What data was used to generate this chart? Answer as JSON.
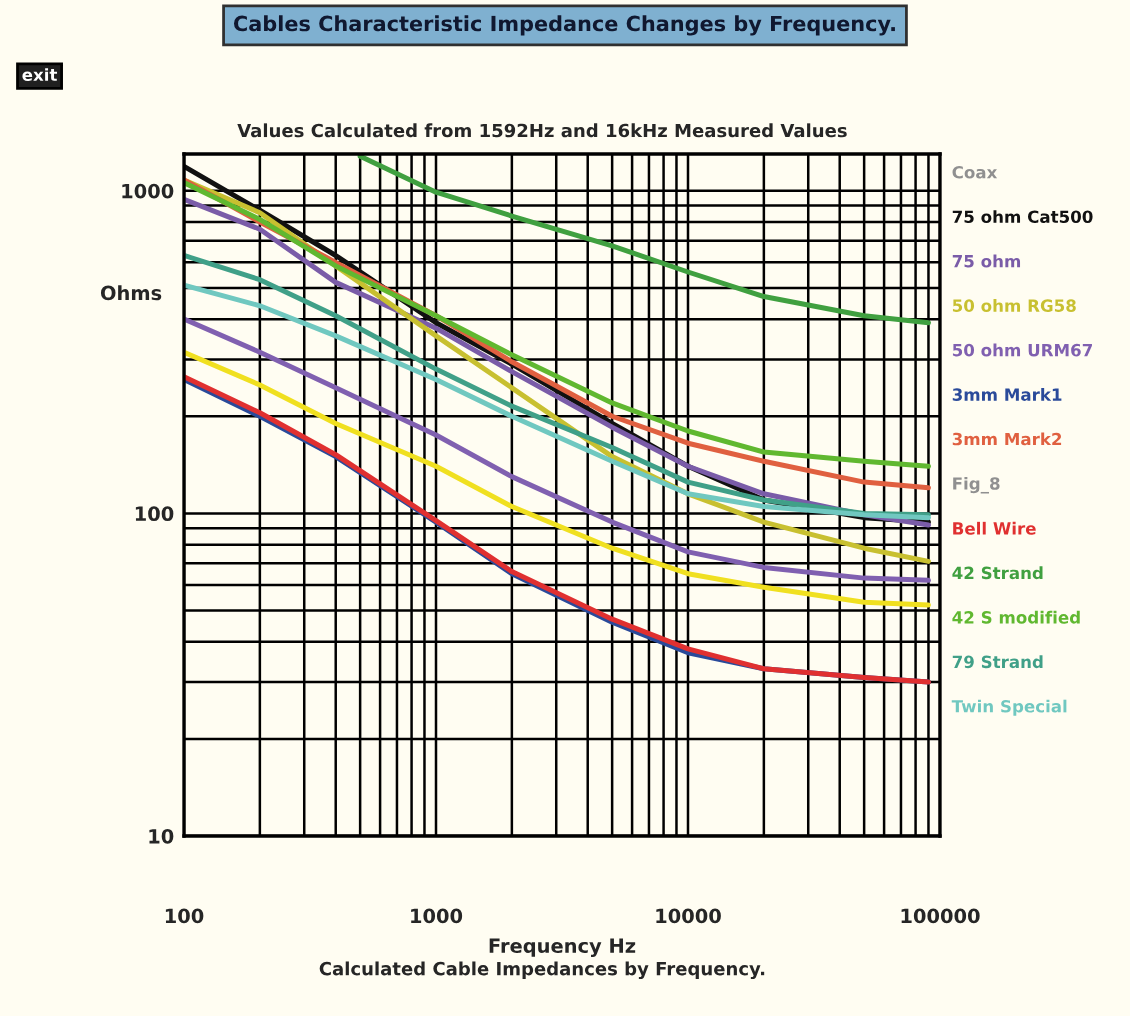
{
  "chart_data": {
    "type": "line",
    "title": "Cables Characteristic Impedance Changes by Frequency.",
    "subtitle": "Values Calculated from 1592Hz and 16kHz Measured Values",
    "xlabel": "Frequency Hz",
    "ylabel": "Ohms",
    "legend_title": "Coax",
    "annotations": [
      "Fig_8",
      "Calculated Cable Impedances by Frequency.",
      "exit"
    ],
    "x": [
      100,
      200,
      400,
      1000,
      2000,
      5000,
      10000,
      20000,
      50000,
      90000
    ],
    "series": [
      {
        "name": "75 ohm Cat500",
        "color": "#111111",
        "values": [
          1190,
          870,
          630,
          390,
          290,
          190,
          140,
          110,
          97,
          94
        ]
      },
      {
        "name": "75 ohm",
        "color": "#7a5ca8",
        "values": [
          940,
          760,
          520,
          375,
          275,
          185,
          140,
          115,
          99,
          92
        ]
      },
      {
        "name": "50 ohm RG58",
        "color": "#c8c030",
        "values": [
          1080,
          855,
          585,
          355,
          245,
          150,
          115,
          94,
          78,
          71
        ]
      },
      {
        "name": "50 ohm URM67",
        "color": "#8060b0",
        "values": [
          400,
          316,
          245,
          175,
          130,
          94,
          76,
          68,
          63,
          62
        ]
      },
      {
        "name": "3mm Mark1",
        "color": "#2a4a9a",
        "values": [
          260,
          200,
          150,
          94,
          65,
          46,
          37,
          33,
          31,
          30
        ]
      },
      {
        "name": "3mm Mark2",
        "color": "#e06040",
        "values": [
          1080,
          800,
          600,
          410,
          295,
          200,
          165,
          145,
          125,
          120
        ]
      },
      {
        "name": "Bell Wire",
        "color": "#e03030",
        "values": [
          265,
          205,
          152,
          95,
          66,
          47,
          38,
          33,
          31,
          30
        ]
      },
      {
        "name": "42 Strand",
        "color": "#40a040",
        "x": [
          500,
          1000,
          2000,
          5000,
          10000,
          20000,
          50000,
          90000
        ],
        "values": [
          1280,
          990,
          835,
          675,
          560,
          470,
          410,
          390
        ]
      },
      {
        "name": "42 S modified",
        "color": "#60b830",
        "values": [
          1060,
          815,
          585,
          410,
          310,
          220,
          180,
          155,
          145,
          140
        ]
      },
      {
        "name": "79 Strand",
        "color": "#40a088",
        "values": [
          630,
          530,
          410,
          280,
          215,
          160,
          125,
          110,
          100,
          99
        ]
      },
      {
        "name": "Twin Special",
        "color": "#70c8c0",
        "values": [
          510,
          440,
          355,
          260,
          200,
          145,
          115,
          105,
          99,
          97
        ]
      },
      {
        "color": "#f0e020",
        "values": [
          316,
          250,
          190,
          140,
          105,
          78,
          65,
          59,
          53,
          52
        ]
      }
    ],
    "log": "xy",
    "xlim": [
      100,
      100000
    ],
    "ylim": [
      10,
      1300
    ],
    "xticks": [
      100,
      1000,
      10000,
      100000
    ],
    "yticks": [
      10,
      100,
      1000
    ],
    "grid": true,
    "legend": "right",
    "marker": "none",
    "line_style": "solid"
  }
}
